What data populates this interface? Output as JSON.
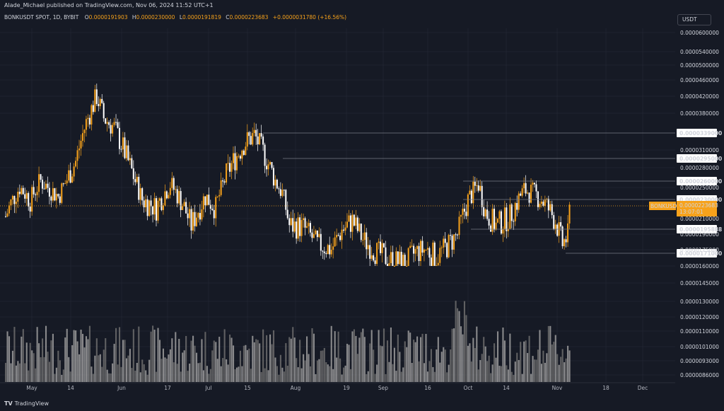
{
  "header": {
    "publisher_line": "Alade_Michael published on TradingView.com, Nov 06, 2024 11:52 UTC+1",
    "symbol": "BONKUSDT SPOT, 1D, BYBIT",
    "ohlc": [
      {
        "k": "O",
        "v": "0.0000191903"
      },
      {
        "k": "H",
        "v": "0.0000230000"
      },
      {
        "k": "L",
        "v": "0.0000191819"
      },
      {
        "k": "C",
        "v": "0.0000223683"
      }
    ],
    "change": "+0.0000031780 (+16.56%)"
  },
  "currency_button": "USDT",
  "footer_logo": "TradingView",
  "colors": {
    "background": "#161a25",
    "up": "#f7a21b",
    "down": "#ffffff",
    "grid": "#1f2330",
    "level_line": "#787b86",
    "last_price": "#f7a21b"
  },
  "chart_data": {
    "type": "candlestick",
    "symbol_label": "BONKUSDT",
    "price_axis_ticks": [
      "0.0000600000",
      "0.0000540000",
      "0.0000500000",
      "0.0000460000",
      "0.0000420000",
      "0.0000380000",
      "0.0000310000",
      "0.0000280000",
      "0.0000250000",
      "0.0000210000",
      "0.0000190000",
      "0.0000175000",
      "0.0000160000",
      "0.0000145000",
      "0.0000130000",
      "0.0000120000",
      "0.0000110000",
      "0.0000101000",
      "0.0000093000",
      "0.0000086000"
    ],
    "highlighted_levels": [
      "0.0000339000",
      "0.0000295000",
      "0.0000260000",
      "0.0000230000",
      "0.0000195888",
      "0.0000171000"
    ],
    "last_price": {
      "label": "BONKUSDT",
      "value": "0.0000223683",
      "countdown": "13:07:01"
    },
    "x_ticks": [
      "May",
      "14",
      "Jun",
      "17",
      "Jul",
      "15",
      "Aug",
      "19",
      "Sep",
      "16",
      "Oct",
      "14",
      "Nov",
      "18",
      "Dec"
    ],
    "grid": true,
    "log_scale": true
  }
}
